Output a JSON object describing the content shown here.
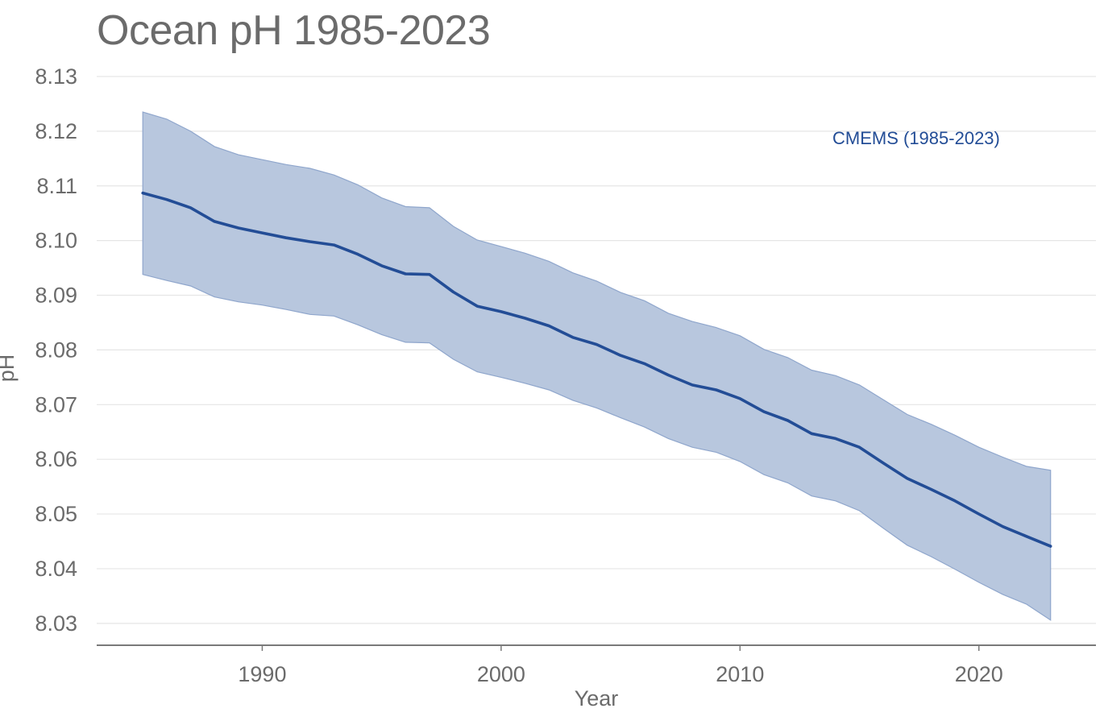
{
  "chart_data": {
    "type": "line",
    "title": "Ocean pH 1985-2023",
    "xlabel": "Year",
    "ylabel": "pH",
    "xlim": [
      1983.07,
      2024.9
    ],
    "ylim": [
      8.026,
      8.132
    ],
    "grid": true,
    "yticks": [
      "8.03",
      "8.04",
      "8.05",
      "8.06",
      "8.07",
      "8.08",
      "8.09",
      "8.10",
      "8.11",
      "8.12",
      "8.13"
    ],
    "ytick_values": [
      8.03,
      8.04,
      8.05,
      8.06,
      8.07,
      8.08,
      8.09,
      8.1,
      8.11,
      8.12,
      8.13
    ],
    "xticks": [
      "1990",
      "2000",
      "2010",
      "2020"
    ],
    "xtick_values": [
      1990,
      2000,
      2010,
      2020
    ],
    "legend": {
      "placement": "top-right",
      "entries": [
        "CMEMS (1985-2023)"
      ]
    },
    "colors": {
      "line": "#234d96",
      "band": "#b8c7de",
      "band_edge": "#8fa6cc",
      "grid": "#e6e6e6",
      "axis": "#7a7a7a",
      "text": "#6b6b6b"
    },
    "x": [
      1985,
      1986,
      1987,
      1988,
      1989,
      1990,
      1991,
      1992,
      1993,
      1994,
      1995,
      1996,
      1997,
      1998,
      1999,
      2000,
      2001,
      2002,
      2003,
      2004,
      2005,
      2006,
      2007,
      2008,
      2009,
      2010,
      2011,
      2012,
      2013,
      2014,
      2015,
      2016,
      2017,
      2018,
      2019,
      2020,
      2021,
      2022,
      2023
    ],
    "series": [
      {
        "name": "CMEMS (1985-2023)",
        "values": [
          8.1087,
          8.1075,
          8.106,
          8.1035,
          8.1023,
          8.1014,
          8.1005,
          8.0998,
          8.0992,
          8.0975,
          8.0954,
          8.0939,
          8.0938,
          8.0906,
          8.088,
          8.087,
          8.0858,
          8.0844,
          8.0823,
          8.081,
          8.079,
          8.0775,
          8.0754,
          8.0736,
          8.0727,
          8.0711,
          8.0687,
          8.0671,
          8.0647,
          8.0638,
          8.0622,
          8.0593,
          8.0565,
          8.0545,
          8.0524,
          8.05,
          8.0477,
          8.0459,
          8.0441
        ],
        "upper": [
          8.1235,
          8.1222,
          8.12,
          8.1172,
          8.1157,
          8.1148,
          8.1139,
          8.1132,
          8.112,
          8.1102,
          8.1078,
          8.1062,
          8.106,
          8.1026,
          8.1001,
          8.0989,
          8.0977,
          8.0962,
          8.0941,
          8.0926,
          8.0905,
          8.089,
          8.0867,
          8.0852,
          8.0841,
          8.0826,
          8.0801,
          8.0786,
          8.0763,
          8.0753,
          8.0736,
          8.0709,
          8.0682,
          8.0664,
          8.0644,
          8.0622,
          8.0604,
          8.0587,
          8.058
        ],
        "lower": [
          8.0938,
          8.0927,
          8.0917,
          8.0897,
          8.0888,
          8.0882,
          8.0874,
          8.0865,
          8.0862,
          8.0846,
          8.0828,
          8.0814,
          8.0813,
          8.0783,
          8.076,
          8.075,
          8.0739,
          8.0727,
          8.0708,
          8.0694,
          8.0676,
          8.0659,
          8.0638,
          8.0622,
          8.0613,
          8.0596,
          8.0572,
          8.0557,
          8.0533,
          8.0524,
          8.0506,
          8.0474,
          8.0443,
          8.0422,
          8.0399,
          8.0375,
          8.0353,
          8.0335,
          8.0306
        ]
      }
    ]
  }
}
